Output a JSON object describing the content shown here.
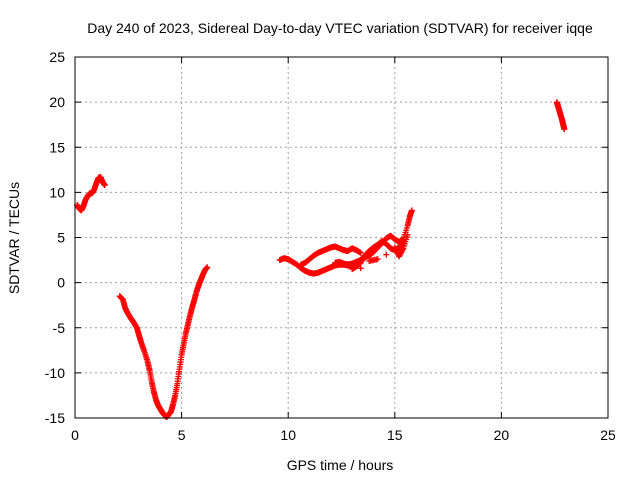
{
  "chart_data": {
    "type": "scatter",
    "title": "Day 240 of 2023, Sidereal Day-to-day VTEC variation (SDTVAR) for receiver iqqe",
    "xlabel": "GPS time / hours",
    "ylabel": "SDTVAR / TECUs",
    "xlim": [
      0,
      25
    ],
    "ylim": [
      -15,
      25
    ],
    "xticks": [
      0,
      5,
      10,
      15,
      20,
      25
    ],
    "yticks": [
      -15,
      -10,
      -5,
      0,
      5,
      10,
      15,
      20,
      25
    ],
    "grid": true,
    "marker": "+",
    "color": "#ff0000",
    "series": [
      {
        "points": [
          [
            0.1,
            8.6
          ],
          [
            0.2,
            8.2
          ],
          [
            0.3,
            8.0
          ],
          [
            0.4,
            8.5
          ],
          [
            0.5,
            9.2
          ],
          [
            0.6,
            9.6
          ],
          [
            0.7,
            9.9
          ],
          [
            0.8,
            9.9
          ],
          [
            0.9,
            10.3
          ],
          [
            1.0,
            11.0
          ],
          [
            1.1,
            11.6
          ],
          [
            1.2,
            11.7
          ],
          [
            1.3,
            11.1
          ],
          [
            1.4,
            10.8
          ],
          [
            2.1,
            -1.5
          ],
          [
            2.25,
            -1.9
          ],
          [
            2.35,
            -2.8
          ],
          [
            2.45,
            -3.3
          ],
          [
            2.6,
            -3.9
          ],
          [
            2.75,
            -4.4
          ],
          [
            2.9,
            -5.0
          ],
          [
            3.0,
            -5.8
          ],
          [
            3.1,
            -6.6
          ],
          [
            3.25,
            -7.6
          ],
          [
            3.4,
            -8.7
          ],
          [
            3.5,
            -9.7
          ],
          [
            3.6,
            -11.0
          ],
          [
            3.7,
            -12.1
          ],
          [
            3.8,
            -13.0
          ],
          [
            3.9,
            -13.6
          ],
          [
            4.0,
            -14.0
          ],
          [
            4.1,
            -14.4
          ],
          [
            4.2,
            -14.7
          ],
          [
            4.3,
            -14.9
          ],
          [
            4.4,
            -14.6
          ],
          [
            4.5,
            -14.3
          ],
          [
            4.6,
            -13.5
          ],
          [
            4.7,
            -12.5
          ],
          [
            4.8,
            -11.2
          ],
          [
            4.9,
            -9.6
          ],
          [
            5.0,
            -8.0
          ],
          [
            5.1,
            -6.8
          ],
          [
            5.2,
            -5.6
          ],
          [
            5.3,
            -4.6
          ],
          [
            5.4,
            -3.6
          ],
          [
            5.5,
            -2.7
          ],
          [
            5.6,
            -1.9
          ],
          [
            5.7,
            -1.0
          ],
          [
            5.8,
            -0.3
          ],
          [
            5.9,
            0.3
          ],
          [
            6.0,
            0.9
          ],
          [
            6.1,
            1.4
          ],
          [
            6.2,
            1.7
          ],
          [
            9.6,
            2.5
          ],
          [
            9.8,
            2.7
          ],
          [
            10.0,
            2.6
          ],
          [
            10.2,
            2.3
          ],
          [
            10.4,
            2.0
          ],
          [
            10.6,
            1.6
          ],
          [
            10.8,
            1.3
          ],
          [
            11.0,
            1.1
          ],
          [
            11.2,
            1.0
          ],
          [
            11.4,
            1.1
          ],
          [
            11.6,
            1.3
          ],
          [
            11.8,
            1.5
          ],
          [
            12.0,
            1.7
          ],
          [
            12.2,
            1.9
          ],
          [
            12.4,
            2.0
          ],
          [
            12.6,
            2.0
          ],
          [
            12.8,
            1.9
          ],
          [
            13.0,
            1.8
          ],
          [
            13.2,
            1.9
          ],
          [
            13.4,
            2.2
          ],
          [
            10.6,
            2.0
          ],
          [
            10.8,
            2.2
          ],
          [
            11.0,
            2.6
          ],
          [
            11.2,
            3.0
          ],
          [
            11.4,
            3.3
          ],
          [
            11.6,
            3.5
          ],
          [
            11.8,
            3.7
          ],
          [
            12.0,
            3.9
          ],
          [
            12.2,
            4.0
          ],
          [
            12.4,
            3.8
          ],
          [
            12.6,
            3.6
          ],
          [
            12.8,
            3.5
          ],
          [
            13.0,
            3.8
          ],
          [
            13.2,
            3.6
          ],
          [
            13.4,
            3.3
          ],
          [
            12.2,
            2.2
          ],
          [
            12.4,
            2.3
          ],
          [
            12.6,
            2.1
          ],
          [
            12.8,
            2.0
          ],
          [
            13.0,
            2.1
          ],
          [
            13.2,
            2.3
          ],
          [
            13.4,
            2.5
          ],
          [
            13.6,
            3.0
          ],
          [
            13.8,
            3.5
          ],
          [
            14.0,
            3.9
          ],
          [
            14.2,
            4.2
          ],
          [
            14.4,
            4.6
          ],
          [
            14.6,
            4.3
          ],
          [
            14.8,
            3.8
          ],
          [
            15.0,
            3.6
          ],
          [
            15.2,
            3.9
          ],
          [
            15.4,
            4.4
          ],
          [
            13.0,
            1.5
          ],
          [
            13.2,
            1.8
          ],
          [
            13.4,
            2.3
          ],
          [
            13.6,
            2.8
          ],
          [
            13.8,
            3.0
          ],
          [
            14.0,
            3.4
          ],
          [
            14.2,
            3.9
          ],
          [
            14.4,
            4.4
          ],
          [
            14.6,
            4.9
          ],
          [
            14.8,
            5.2
          ],
          [
            15.0,
            4.8
          ],
          [
            15.2,
            4.5
          ],
          [
            15.4,
            4.8
          ],
          [
            15.6,
            6.3
          ],
          [
            15.7,
            7.3
          ],
          [
            15.8,
            8.0
          ],
          [
            13.4,
            1.6
          ],
          [
            13.8,
            2.4
          ],
          [
            14.2,
            2.6
          ],
          [
            14.6,
            3.1
          ],
          [
            15.0,
            3.9
          ],
          [
            15.2,
            2.9
          ],
          [
            15.4,
            3.8
          ],
          [
            15.6,
            5.3
          ],
          [
            22.6,
            20.0
          ],
          [
            22.65,
            19.6
          ],
          [
            22.7,
            19.2
          ],
          [
            22.75,
            18.8
          ],
          [
            22.8,
            18.4
          ],
          [
            22.85,
            18.0
          ],
          [
            22.9,
            17.5
          ],
          [
            22.95,
            17.0
          ]
        ]
      }
    ]
  }
}
